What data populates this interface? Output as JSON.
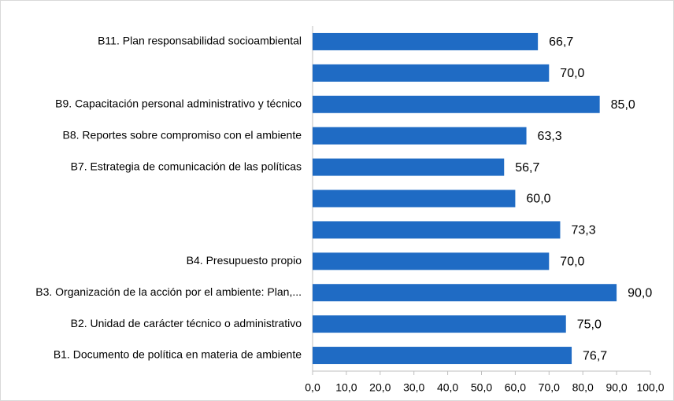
{
  "chart_data": {
    "type": "hbar",
    "categories": [
      "B11. Plan responsabilidad socioambiental",
      null,
      "B9. Capacitación personal administrativo y técnico",
      "B8. Reportes sobre compromiso con el ambiente",
      "B7. Estrategia de comunicación de las políticas",
      null,
      null,
      "B4. Presupuesto propio",
      "B3. Organización de la acción por el ambiente: Plan,...",
      "B2. Unidad de carácter técnico o administrativo",
      "B1. Documento de política en materia de ambiente"
    ],
    "values": [
      66.7,
      70.0,
      85.0,
      63.3,
      56.7,
      60.0,
      73.3,
      70.0,
      90.0,
      75.0,
      76.7
    ],
    "value_labels": [
      "66,7",
      "70,0",
      "85,0",
      "63,3",
      "56,7",
      "60,0",
      "73,3",
      "70,0",
      "90,0",
      "75,0",
      "76,7"
    ],
    "color": "#1f6bc4",
    "xlim": [
      0,
      100
    ],
    "xticks": [
      {
        "value": 0,
        "label": "0,0"
      },
      {
        "value": 10,
        "label": "10,0"
      },
      {
        "value": 20,
        "label": "20,0"
      },
      {
        "value": 30,
        "label": "30,0"
      },
      {
        "value": 40,
        "label": "40,0"
      },
      {
        "value": 50,
        "label": "50,0"
      },
      {
        "value": 60,
        "label": "60,0"
      },
      {
        "value": 70,
        "label": "70,0"
      },
      {
        "value": 80,
        "label": "80,0"
      },
      {
        "value": 90,
        "label": "90,0"
      },
      {
        "value": 100,
        "label": "100,0"
      }
    ],
    "grid": false
  }
}
